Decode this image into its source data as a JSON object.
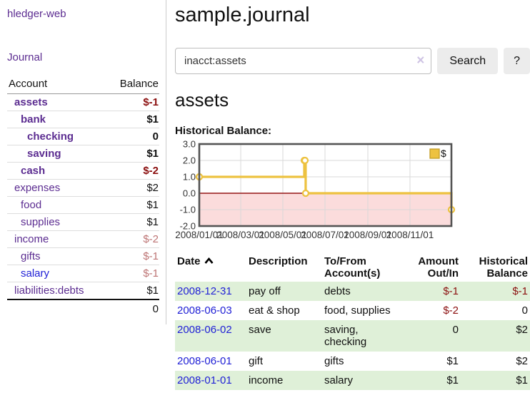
{
  "app": {
    "brand": "hledger-web",
    "nav_journal": "Journal"
  },
  "sidebar": {
    "headers": {
      "account": "Account",
      "balance": "Balance"
    },
    "accounts": [
      {
        "name": "assets",
        "balance": "$-1"
      },
      {
        "name": "bank",
        "balance": "$1"
      },
      {
        "name": "checking",
        "balance": "0"
      },
      {
        "name": "saving",
        "balance": "$1"
      },
      {
        "name": "cash",
        "balance": "$-2"
      },
      {
        "name": "expenses",
        "balance": "$2"
      },
      {
        "name": "food",
        "balance": "$1"
      },
      {
        "name": "supplies",
        "balance": "$1"
      },
      {
        "name": "income",
        "balance": "$-2"
      },
      {
        "name": "gifts",
        "balance": "$-1"
      },
      {
        "name": "salary",
        "balance": "$-1"
      },
      {
        "name": "liabilities:debts",
        "balance": "$1"
      }
    ],
    "total": "0"
  },
  "header": {
    "title": "sample.journal"
  },
  "search": {
    "value": "inacct:assets",
    "clear_icon": "×",
    "button_label": "Search",
    "help_label": "?"
  },
  "account_page": {
    "heading": "assets",
    "chart_label": "Historical Balance:"
  },
  "chart_data": {
    "type": "line",
    "title": "Historical Balance",
    "step": true,
    "series": [
      {
        "name": "$",
        "points": [
          [
            "2008-01-01",
            1
          ],
          [
            "2008-06-01",
            2
          ],
          [
            "2008-06-02",
            2
          ],
          [
            "2008-06-03",
            0
          ],
          [
            "2008-12-31",
            -1
          ]
        ]
      }
    ],
    "x_range": [
      "2008-01-01",
      "2008-12-31"
    ],
    "x_tick_labels": [
      "2008/01/01",
      "2008/03/01",
      "2008/05/01",
      "2008/07/01",
      "2008/09/01",
      "2008/11/01"
    ],
    "y_ticks": [
      3.0,
      2.0,
      1.0,
      0.0,
      -1.0,
      -2.0
    ],
    "ylim": [
      -2,
      3
    ],
    "legend_position": "top-right",
    "grid": true,
    "colors": {
      "line": "#edc240",
      "legend_border": "#c29d25",
      "negative_fill": "#fbdcdc",
      "zero_line": "#951414",
      "grid": "#d9d9d9",
      "frame": "#545454"
    }
  },
  "register": {
    "headers": [
      "Date",
      "Description",
      "To/From Account(s)",
      "Amount Out/In",
      "Historical Balance"
    ],
    "rows": [
      {
        "date": "2008-12-31",
        "description": "pay off",
        "accounts": "debts",
        "amount": "$-1",
        "balance": "$-1"
      },
      {
        "date": "2008-06-03",
        "description": "eat & shop",
        "accounts": "food, supplies",
        "amount": "$-2",
        "balance": "0"
      },
      {
        "date": "2008-06-02",
        "description": "save",
        "accounts": "saving, checking",
        "amount": "0",
        "balance": "$2"
      },
      {
        "date": "2008-06-01",
        "description": "gift",
        "accounts": "gifts",
        "amount": "$1",
        "balance": "$2"
      },
      {
        "date": "2008-01-01",
        "description": "income",
        "accounts": "salary",
        "amount": "$1",
        "balance": "$1"
      }
    ]
  }
}
